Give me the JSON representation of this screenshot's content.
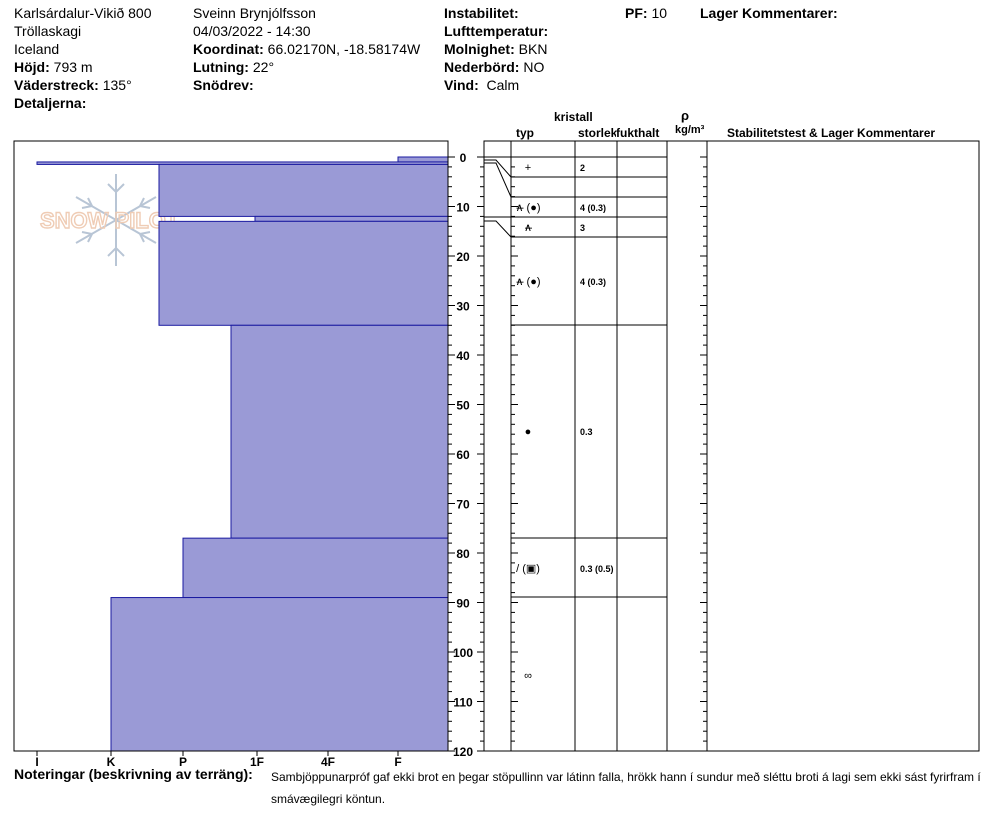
{
  "header": {
    "location": "Karlsárdalur-Vikið 800",
    "region": "Tröllaskagi",
    "country": "Iceland",
    "elevation_label": "Höjd:",
    "elevation_value": "793 m",
    "aspect_label": "Väderstreck:",
    "aspect_value": "135°",
    "details_label": "Detaljerna:",
    "observer": "Sveinn Brynjólfsson",
    "datetime": "04/03/2022 - 14:30",
    "coord_label": "Koordinat:",
    "coord_value": "66.02170N, -18.58174W",
    "slope_label": "Lutning:",
    "slope_value": "22°",
    "drift_label": "Snödrev:",
    "instability_label": "Instabilitet:",
    "airtemp_label": "Lufttemperatur:",
    "cloud_label": "Molnighet:",
    "cloud_value": "BKN",
    "precip_label": "Nederbörd:",
    "precip_value": "NO",
    "wind_label": "Vind:",
    "wind_value": "Calm",
    "pf_label": "PF:",
    "pf_value": "10",
    "layer_comments_label": "Lager Kommentarer:"
  },
  "columns": {
    "crystal": "kristall",
    "type": "typ",
    "size": "storlek",
    "moisture": "fukthalt",
    "rho": "ρ",
    "density_unit": "kg/m³",
    "stability": "Stabilitetstest & Lager Kommentarer"
  },
  "logo_text": "SNOW PILOT",
  "chart_data": {
    "type": "bar",
    "orientation": "horizontal",
    "y_axis": {
      "label": "",
      "range": [
        0,
        120
      ],
      "ticks": [
        0,
        10,
        20,
        30,
        40,
        50,
        60,
        70,
        80,
        90,
        100,
        110,
        120
      ],
      "inverted": true
    },
    "x_axis": {
      "label": "",
      "ticks": [
        "I",
        "K",
        "P",
        "1F",
        "4F",
        "F"
      ]
    },
    "hardness_layers": [
      {
        "top": 0,
        "bottom": 1,
        "hardness": "F"
      },
      {
        "top": 1,
        "bottom": 1.5,
        "hardness": "I"
      },
      {
        "top": 1.5,
        "bottom": 12,
        "hardness": "K-P"
      },
      {
        "top": 12,
        "bottom": 13,
        "hardness": "P+"
      },
      {
        "top": 13,
        "bottom": 34,
        "hardness": "K-P"
      },
      {
        "top": 34,
        "bottom": 77,
        "hardness": "1F-"
      },
      {
        "top": 77,
        "bottom": 89,
        "hardness": "P-1F"
      },
      {
        "top": 89,
        "bottom": 120,
        "hardness": "K"
      }
    ],
    "boundaries": [
      1,
      4,
      8,
      12,
      16,
      34,
      77,
      89
    ],
    "crystal_layers": [
      {
        "depth": 2,
        "form": "+",
        "size": "2"
      },
      {
        "depth": 10,
        "form": "∧̶ (●)",
        "size": "4 (0.3)"
      },
      {
        "depth": 14,
        "form": "∧̶",
        "size": "3"
      },
      {
        "depth": 25,
        "form": "∧̶ (●)",
        "size": "4 (0.3)"
      },
      {
        "depth": 55,
        "form": "●",
        "size": "0.3"
      },
      {
        "depth": 83,
        "form": "/ (▣)",
        "size": "0.3 (0.5)"
      },
      {
        "depth": 105,
        "form": "∞",
        "size": ""
      }
    ]
  },
  "notes": {
    "label": "Noteringar (beskrivning av terräng):",
    "text": "Sambjöppunarpróf gaf ekki brot en þegar stöpullinn var látinn falla, hrökk hann í sundur með sléttu broti á lagi sem ekki sást fyrirfram í smávægilegri köntun."
  },
  "colors": {
    "fill": "#9a9ad6",
    "edge": "#1a1aa0"
  }
}
